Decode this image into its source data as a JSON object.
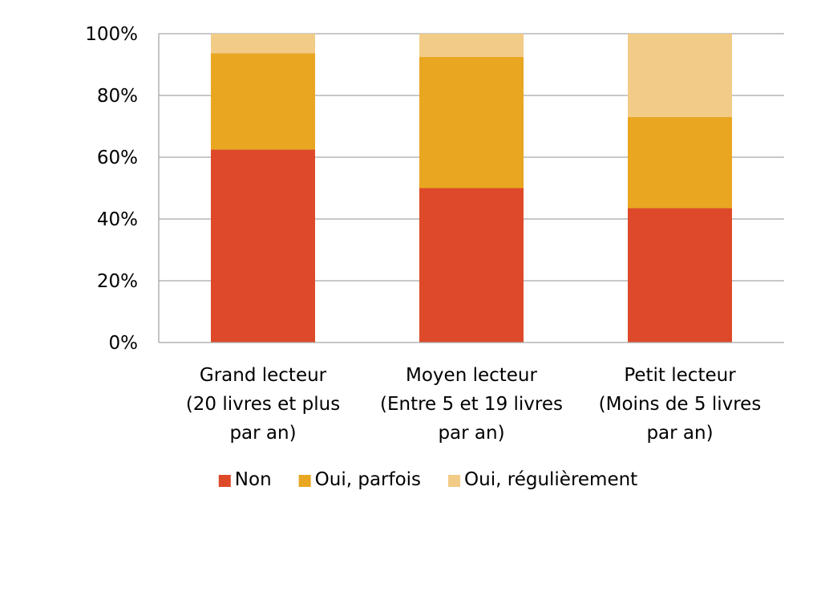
{
  "chart_data": {
    "type": "bar",
    "stacked": true,
    "categories": [
      [
        "Grand lecteur",
        "(20 livres et plus",
        "par an)"
      ],
      [
        "Moyen lecteur",
        "(Entre 5 et 19 livres",
        "par an)"
      ],
      [
        "Petit lecteur",
        "(Moins de 5 livres",
        "par an)"
      ]
    ],
    "series": [
      {
        "name": "Non",
        "color": "#DE4A29",
        "values": [
          62.5,
          50,
          43.5
        ]
      },
      {
        "name": "Oui, parfois",
        "color": "#E8A621",
        "values": [
          31.2,
          42.5,
          29.5
        ]
      },
      {
        "name": "Oui, régulièrement",
        "color": "#F2CB86",
        "values": [
          6.3,
          7.5,
          27
        ]
      }
    ],
    "ylim": [
      0,
      100
    ],
    "yticks": [
      "0%",
      "20%",
      "40%",
      "60%",
      "80%",
      "100%"
    ],
    "grid": true,
    "legend_position": "bottom",
    "title": "",
    "xlabel": "",
    "ylabel": ""
  }
}
